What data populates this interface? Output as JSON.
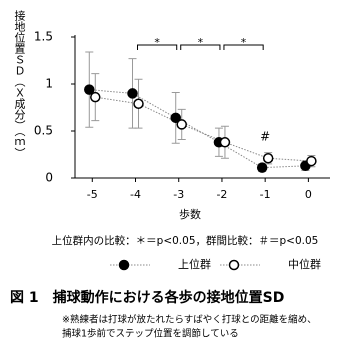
{
  "chart_data": {
    "type": "line",
    "y_label": "接地位置ＳＤ（Ｘ成分）（ｍ）",
    "x_label": "歩数",
    "x": [
      -5,
      -4,
      -3,
      -2,
      -1,
      0
    ],
    "xlim": [
      -5.4,
      0.5
    ],
    "xticks": [
      -5,
      -4,
      -3,
      -2,
      -1,
      0
    ],
    "ylim": [
      0,
      1.5
    ],
    "yticks": [
      0,
      0.5,
      1,
      1.5
    ],
    "series": [
      {
        "name": "上位群",
        "color": "#000000",
        "marker": "filled",
        "values": [
          0.94,
          0.9,
          0.64,
          0.38,
          0.11,
          0.13
        ],
        "errors": [
          0.4,
          0.37,
          0.27,
          0.15,
          0.04,
          0.05
        ]
      },
      {
        "name": "中位群",
        "color": "#000000",
        "marker": "hollow",
        "values": [
          0.86,
          0.79,
          0.57,
          0.38,
          0.21,
          0.18
        ],
        "errors": [
          0.25,
          0.26,
          0.16,
          0.17,
          0.06,
          0.06
        ]
      }
    ],
    "brackets": [
      {
        "text": "*",
        "x1": -4,
        "x2": -3
      },
      {
        "text": "*",
        "x1": -3,
        "x2": -2
      },
      {
        "text": "*",
        "x1": -2,
        "x2": -1
      }
    ],
    "marks": [
      {
        "text": "#",
        "x": -1
      }
    ],
    "note": "上位群内の比較：＊＝p<0.05，群間比較：＃＝p<0.05",
    "caption": "図 1　捕球動作における各歩の接地位置SD",
    "footnotes": [
      "※熟練者は打球が放たれたらすばやく打球との距離を縮め、",
      "捕球1歩前でステップ位置を調節している"
    ]
  }
}
